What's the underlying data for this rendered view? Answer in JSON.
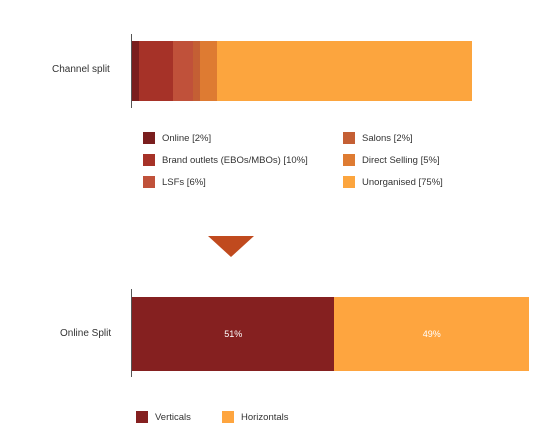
{
  "chart_data": [
    {
      "type": "bar",
      "title": "",
      "xlabel": "",
      "ylabel": "",
      "categories": [
        "Channel split"
      ],
      "series": [
        {
          "name": "Online [2%]",
          "values": [
            2
          ],
          "color": "#7a1e1e"
        },
        {
          "name": "Brand outlets (EBOs/MBOs) [10%]",
          "values": [
            10
          ],
          "color": "#a63228"
        },
        {
          "name": "LSFs [6%]",
          "values": [
            6
          ],
          "color": "#c0513a"
        },
        {
          "name": "Salons [2%]",
          "values": [
            2
          ],
          "color": "#c45f34"
        },
        {
          "name": "Direct Selling [5%]",
          "values": [
            5
          ],
          "color": "#de7b32"
        },
        {
          "name": "Unorganised [75%]",
          "values": [
            75
          ],
          "color": "#fca53e"
        }
      ],
      "stacked": true,
      "orientation": "horizontal",
      "legend": "bottom"
    },
    {
      "type": "bar",
      "title": "",
      "xlabel": "",
      "ylabel": "",
      "categories": [
        "Online Split"
      ],
      "series": [
        {
          "name": "Verticals",
          "values": [
            51
          ],
          "label": "51%",
          "color": "#852020"
        },
        {
          "name": "Horizontals",
          "values": [
            49
          ],
          "label": "49%",
          "color": "#fea53f"
        }
      ],
      "stacked": true,
      "orientation": "horizontal",
      "legend": "bottom"
    }
  ],
  "colors": {
    "arrow": "#c04a1e"
  }
}
